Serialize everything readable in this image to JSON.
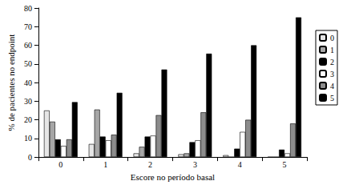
{
  "chart_data": {
    "type": "bar",
    "x_label": "Escore no período basal",
    "y_label": "% de pacientes no endpoint",
    "categories": [
      "0",
      "1",
      "2",
      "3",
      "4",
      "5"
    ],
    "series": [
      {
        "name": "0",
        "color": "#e6e6e6",
        "values": [
          25,
          7,
          2,
          1.5,
          1,
          0
        ]
      },
      {
        "name": "1",
        "color": "#a6a6a6",
        "values": [
          19,
          25.5,
          5.5,
          2,
          0,
          0
        ]
      },
      {
        "name": "2",
        "color": "#000000",
        "values": [
          9.5,
          11,
          11,
          8,
          4.5,
          4
        ]
      },
      {
        "name": "3",
        "color": "#ffffff",
        "values": [
          6,
          9,
          11.5,
          9,
          13.5,
          2
        ]
      },
      {
        "name": "4",
        "color": "#8c8c8c",
        "values": [
          9.5,
          12,
          22.5,
          24,
          20,
          18
        ]
      },
      {
        "name": "5",
        "color": "#000000",
        "values": [
          29.5,
          34.5,
          47,
          55.5,
          60,
          75
        ]
      }
    ],
    "ylim": [
      0,
      80
    ],
    "yticks": [
      0,
      10,
      20,
      30,
      40,
      50,
      60,
      70,
      80
    ],
    "grid": false,
    "legend": "right"
  }
}
